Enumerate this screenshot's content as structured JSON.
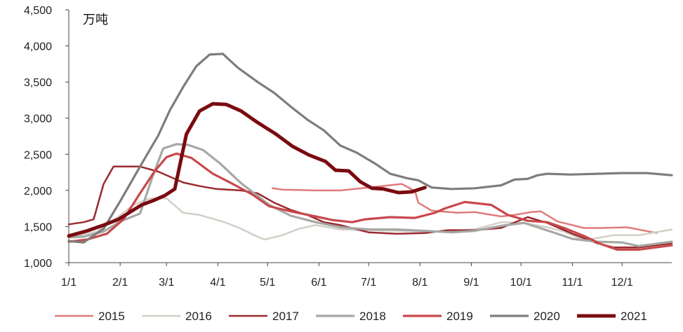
{
  "chart_data": {
    "type": "line",
    "unit_label": "万吨",
    "y_ticks": [
      "1,000",
      "1,500",
      "2,000",
      "2,500",
      "3,000",
      "3,500",
      "4,000",
      "4,500"
    ],
    "y_tick_values": [
      1000,
      1500,
      2000,
      2500,
      3000,
      3500,
      4000,
      4500
    ],
    "ylim": [
      1000,
      4500
    ],
    "x_ticks": [
      "1/1",
      "2/1",
      "3/1",
      "4/1",
      "5/1",
      "6/1",
      "7/1",
      "8/1",
      "9/1",
      "10/1",
      "11/1",
      "12/1"
    ],
    "x_tick_values": [
      1,
      32,
      60,
      91,
      121,
      152,
      182,
      213,
      244,
      274,
      305,
      335
    ],
    "xlim": [
      1,
      365
    ],
    "legend_position": "bottom",
    "series": [
      {
        "name": "2015",
        "color": "#e07b7b",
        "width": 2.5,
        "points": [
          [
            124,
            2030
          ],
          [
            130,
            2010
          ],
          [
            150,
            2000
          ],
          [
            165,
            2000
          ],
          [
            182,
            2040
          ],
          [
            202,
            2090
          ],
          [
            210,
            1990
          ],
          [
            212,
            1830
          ],
          [
            220,
            1720
          ],
          [
            236,
            1690
          ],
          [
            246,
            1700
          ],
          [
            262,
            1640
          ],
          [
            270,
            1660
          ],
          [
            280,
            1700
          ],
          [
            286,
            1710
          ],
          [
            296,
            1570
          ],
          [
            312,
            1480
          ],
          [
            322,
            1480
          ],
          [
            338,
            1490
          ],
          [
            356,
            1410
          ]
        ]
      },
      {
        "name": "2016",
        "color": "#d3cfc8",
        "width": 2.5,
        "points": [
          [
            1,
            1350
          ],
          [
            18,
            1430
          ],
          [
            30,
            1620
          ],
          [
            40,
            1800
          ],
          [
            50,
            1890
          ],
          [
            60,
            1890
          ],
          [
            70,
            1690
          ],
          [
            80,
            1660
          ],
          [
            95,
            1560
          ],
          [
            104,
            1480
          ],
          [
            113,
            1380
          ],
          [
            119,
            1320
          ],
          [
            130,
            1380
          ],
          [
            140,
            1470
          ],
          [
            150,
            1520
          ],
          [
            165,
            1460
          ],
          [
            182,
            1450
          ],
          [
            202,
            1440
          ],
          [
            216,
            1430
          ],
          [
            232,
            1440
          ],
          [
            246,
            1460
          ],
          [
            262,
            1560
          ],
          [
            276,
            1550
          ],
          [
            290,
            1490
          ],
          [
            300,
            1430
          ],
          [
            312,
            1310
          ],
          [
            330,
            1380
          ],
          [
            345,
            1380
          ],
          [
            365,
            1460
          ]
        ]
      },
      {
        "name": "2017",
        "color": "#9b2a2e",
        "width": 2.5,
        "points": [
          [
            1,
            1530
          ],
          [
            10,
            1560
          ],
          [
            16,
            1600
          ],
          [
            22,
            2090
          ],
          [
            28,
            2330
          ],
          [
            44,
            2330
          ],
          [
            55,
            2260
          ],
          [
            70,
            2110
          ],
          [
            80,
            2060
          ],
          [
            90,
            2020
          ],
          [
            105,
            2000
          ],
          [
            115,
            1960
          ],
          [
            125,
            1830
          ],
          [
            135,
            1730
          ],
          [
            145,
            1660
          ],
          [
            155,
            1560
          ],
          [
            165,
            1520
          ],
          [
            182,
            1420
          ],
          [
            199,
            1400
          ],
          [
            216,
            1410
          ],
          [
            230,
            1450
          ],
          [
            246,
            1450
          ],
          [
            262,
            1480
          ],
          [
            278,
            1630
          ],
          [
            290,
            1550
          ],
          [
            305,
            1400
          ],
          [
            320,
            1270
          ],
          [
            330,
            1210
          ],
          [
            345,
            1210
          ],
          [
            365,
            1270
          ]
        ]
      },
      {
        "name": "2018",
        "color": "#a7a7a4",
        "width": 3.2,
        "points": [
          [
            1,
            1350
          ],
          [
            10,
            1360
          ],
          [
            22,
            1430
          ],
          [
            32,
            1570
          ],
          [
            44,
            1680
          ],
          [
            52,
            2220
          ],
          [
            58,
            2580
          ],
          [
            66,
            2640
          ],
          [
            73,
            2630
          ],
          [
            82,
            2560
          ],
          [
            92,
            2380
          ],
          [
            105,
            2100
          ],
          [
            122,
            1800
          ],
          [
            135,
            1650
          ],
          [
            150,
            1560
          ],
          [
            165,
            1490
          ],
          [
            182,
            1460
          ],
          [
            199,
            1460
          ],
          [
            216,
            1440
          ],
          [
            232,
            1420
          ],
          [
            246,
            1440
          ],
          [
            262,
            1510
          ],
          [
            276,
            1550
          ],
          [
            292,
            1430
          ],
          [
            305,
            1330
          ],
          [
            320,
            1290
          ],
          [
            335,
            1280
          ],
          [
            345,
            1230
          ],
          [
            365,
            1290
          ]
        ]
      },
      {
        "name": "2019",
        "color": "#c8484c",
        "width": 3.2,
        "points": [
          [
            1,
            1290
          ],
          [
            12,
            1320
          ],
          [
            24,
            1400
          ],
          [
            34,
            1600
          ],
          [
            44,
            1960
          ],
          [
            53,
            2270
          ],
          [
            60,
            2460
          ],
          [
            66,
            2510
          ],
          [
            75,
            2450
          ],
          [
            88,
            2230
          ],
          [
            100,
            2090
          ],
          [
            112,
            1940
          ],
          [
            122,
            1780
          ],
          [
            135,
            1710
          ],
          [
            150,
            1640
          ],
          [
            160,
            1590
          ],
          [
            172,
            1560
          ],
          [
            180,
            1600
          ],
          [
            195,
            1630
          ],
          [
            210,
            1620
          ],
          [
            222,
            1690
          ],
          [
            228,
            1750
          ],
          [
            240,
            1840
          ],
          [
            256,
            1800
          ],
          [
            266,
            1660
          ],
          [
            278,
            1580
          ],
          [
            290,
            1560
          ],
          [
            300,
            1480
          ],
          [
            312,
            1370
          ],
          [
            322,
            1260
          ],
          [
            332,
            1180
          ],
          [
            345,
            1180
          ],
          [
            365,
            1240
          ]
        ]
      },
      {
        "name": "2020",
        "color": "#7d7d7b",
        "width": 3.2,
        "points": [
          [
            1,
            1300
          ],
          [
            10,
            1280
          ],
          [
            22,
            1470
          ],
          [
            32,
            1850
          ],
          [
            44,
            2330
          ],
          [
            55,
            2760
          ],
          [
            62,
            3110
          ],
          [
            70,
            3430
          ],
          [
            78,
            3720
          ],
          [
            86,
            3880
          ],
          [
            94,
            3890
          ],
          [
            103,
            3700
          ],
          [
            115,
            3500
          ],
          [
            125,
            3350
          ],
          [
            135,
            3160
          ],
          [
            145,
            2980
          ],
          [
            155,
            2830
          ],
          [
            165,
            2620
          ],
          [
            175,
            2520
          ],
          [
            186,
            2370
          ],
          [
            195,
            2230
          ],
          [
            205,
            2170
          ],
          [
            212,
            2140
          ],
          [
            220,
            2040
          ],
          [
            232,
            2020
          ],
          [
            246,
            2030
          ],
          [
            262,
            2070
          ],
          [
            270,
            2150
          ],
          [
            278,
            2160
          ],
          [
            284,
            2210
          ],
          [
            290,
            2230
          ],
          [
            304,
            2220
          ],
          [
            320,
            2230
          ],
          [
            335,
            2240
          ],
          [
            350,
            2240
          ],
          [
            365,
            2210
          ]
        ]
      },
      {
        "name": "2021",
        "color": "#7a0b10",
        "width": 5,
        "points": [
          [
            1,
            1370
          ],
          [
            12,
            1440
          ],
          [
            22,
            1520
          ],
          [
            31,
            1600
          ],
          [
            38,
            1700
          ],
          [
            45,
            1800
          ],
          [
            52,
            1860
          ],
          [
            59,
            1930
          ],
          [
            65,
            2020
          ],
          [
            72,
            2780
          ],
          [
            80,
            3100
          ],
          [
            88,
            3200
          ],
          [
            96,
            3190
          ],
          [
            105,
            3100
          ],
          [
            115,
            2940
          ],
          [
            126,
            2780
          ],
          [
            136,
            2610
          ],
          [
            146,
            2490
          ],
          [
            156,
            2400
          ],
          [
            162,
            2280
          ],
          [
            170,
            2270
          ],
          [
            177,
            2120
          ],
          [
            184,
            2030
          ],
          [
            191,
            2020
          ],
          [
            200,
            1970
          ],
          [
            208,
            1980
          ],
          [
            216,
            2040
          ]
        ]
      }
    ]
  }
}
